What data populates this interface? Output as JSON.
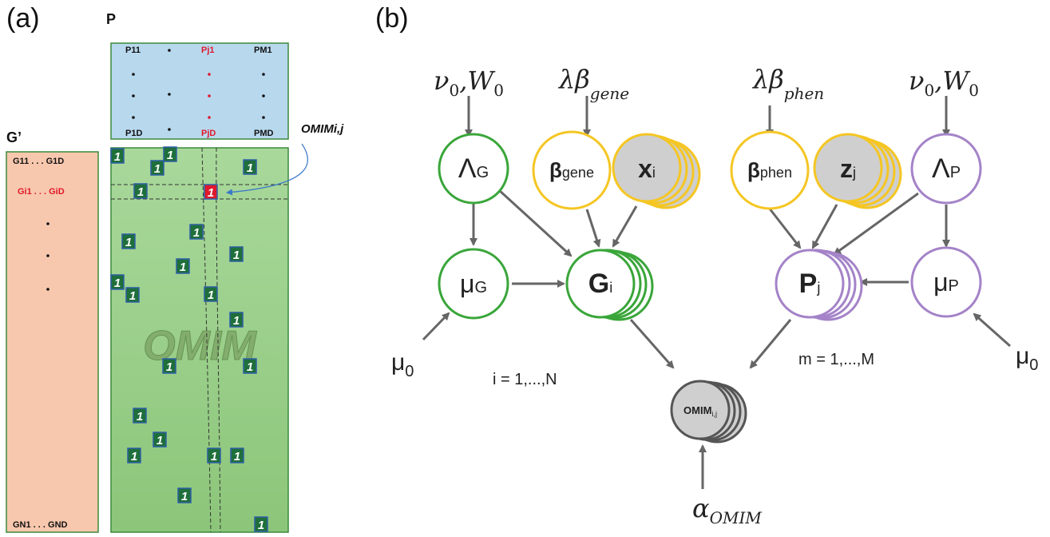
{
  "panel_a": {
    "label": "(a)",
    "p_label": "P",
    "g_label": "G’",
    "p_matrix": {
      "top_left": "P11",
      "top_mid": "Pj1",
      "top_right": "PM1",
      "bot_left": "P1D",
      "bot_mid": "PjD",
      "bot_right": "PMD"
    },
    "g_matrix": {
      "row1": "G11 . . . G1D",
      "rowi": "Gi1 . . . GiD",
      "rowN": "GN1 . . . GND"
    },
    "omim_pointer": "OMIMi,j",
    "omim_watermark": "OMIM",
    "one_value": "1"
  },
  "panel_b": {
    "label": "(b)",
    "priors": {
      "nu_w_left": "ν0,W0",
      "lambda_gene": "λβgene",
      "lambda_phen": "λβphen",
      "nu_w_right": "ν0,W0",
      "mu0_left": "μ0",
      "mu0_right": "μ0",
      "alpha": "αOMIM"
    },
    "nodes": {
      "lambda_g": "ΛG",
      "beta_gene": "βgene",
      "x_i": "xi",
      "beta_phen": "βphen",
      "z_j": "zj",
      "lambda_p": "ΛP",
      "mu_g": "μG",
      "g_i": "Gi",
      "p_j": "Pj",
      "mu_p": "μP",
      "omim": "OMIMi,j"
    },
    "plates": {
      "i_range": "i = 1,...,N",
      "m_range": "m = 1,...,M"
    }
  },
  "colors": {
    "green": "#3aa63a",
    "yellow": "#f5c623",
    "purple": "#a483c8",
    "gray": "#555555",
    "red": "#e0182b",
    "p_matrix_fill": "#b8d8ee",
    "g_matrix_fill": "#f8c8ae",
    "omim_fill": "#9fd08f"
  }
}
